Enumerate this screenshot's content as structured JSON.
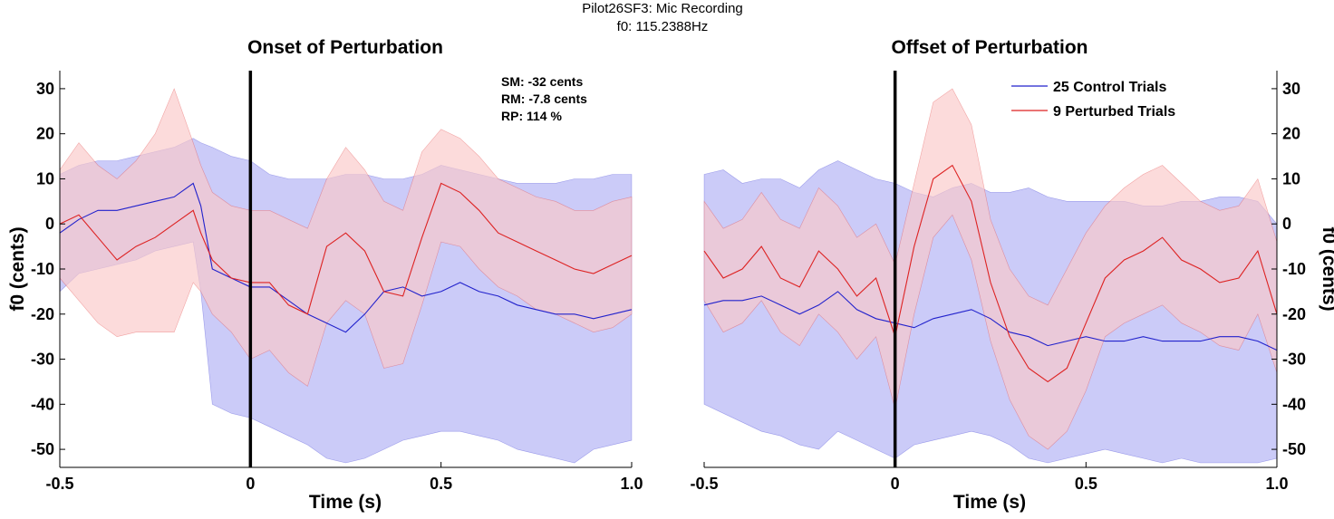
{
  "figure": {
    "suptitle_line1": "Pilot26SF3: Mic Recording",
    "suptitle_line2": "f0: 115.2388Hz"
  },
  "chart_data": [
    {
      "type": "line",
      "title": "Onset of Perturbation",
      "xlabel": "Time (s)",
      "ylabel": "f0 (cents)",
      "xlim": [
        -0.5,
        1.0
      ],
      "ylim": [
        -54,
        34
      ],
      "xticks": [
        "-0.5",
        "0",
        "0.5",
        "1.0"
      ],
      "yticks": [
        "30",
        "20",
        "10",
        "0",
        "-10",
        "-20",
        "-30",
        "-40",
        "-50"
      ],
      "y_axis_side": "left",
      "event_line_x": 0,
      "annotations": [
        "SM: -32 cents",
        "RM: -7.8 cents",
        "RP: 114 %"
      ],
      "series": [
        {
          "name": "25 Control Trials",
          "color": "#2222cc",
          "band_color": "#c8c8f8",
          "x": [
            -0.5,
            -0.45,
            -0.4,
            -0.35,
            -0.3,
            -0.25,
            -0.2,
            -0.15,
            -0.13,
            -0.1,
            -0.05,
            0.0,
            0.05,
            0.1,
            0.15,
            0.2,
            0.25,
            0.3,
            0.35,
            0.4,
            0.45,
            0.5,
            0.55,
            0.6,
            0.65,
            0.7,
            0.75,
            0.8,
            0.85,
            0.9,
            0.95,
            1.0
          ],
          "mean": [
            -2,
            1,
            3,
            3,
            4,
            5,
            6,
            9,
            4,
            -10,
            -12,
            -14,
            -14,
            -17,
            -20,
            -22,
            -24,
            -20,
            -15,
            -14,
            -16,
            -15,
            -13,
            -15,
            -16,
            -18,
            -19,
            -20,
            -20,
            -21,
            -20,
            -19
          ],
          "upper": [
            11,
            13,
            14,
            14,
            15,
            16,
            17,
            19,
            18,
            17,
            15,
            14,
            11,
            10,
            10,
            10,
            11,
            11,
            10,
            10,
            11,
            13,
            12,
            11,
            10,
            9,
            9,
            9,
            10,
            10,
            11,
            11
          ],
          "lower": [
            -15,
            -11,
            -10,
            -9,
            -8,
            -6,
            -5,
            -4,
            -15,
            -40,
            -42,
            -43,
            -45,
            -47,
            -49,
            -52,
            -53,
            -52,
            -50,
            -48,
            -47,
            -46,
            -46,
            -47,
            -48,
            -50,
            -51,
            -52,
            -53,
            -50,
            -49,
            -48
          ]
        },
        {
          "name": "9 Perturbed Trials",
          "color": "#dd2222",
          "band_color": "#fbc8c8",
          "x": [
            -0.5,
            -0.45,
            -0.4,
            -0.35,
            -0.3,
            -0.25,
            -0.2,
            -0.15,
            -0.13,
            -0.1,
            -0.05,
            0.0,
            0.05,
            0.1,
            0.15,
            0.2,
            0.25,
            0.3,
            0.35,
            0.4,
            0.45,
            0.5,
            0.55,
            0.6,
            0.65,
            0.7,
            0.75,
            0.8,
            0.85,
            0.9,
            0.95,
            1.0
          ],
          "mean": [
            0,
            2,
            -3,
            -8,
            -5,
            -3,
            0,
            3,
            -2,
            -8,
            -12,
            -13,
            -13,
            -18,
            -20,
            -5,
            -2,
            -6,
            -15,
            -16,
            -3,
            9,
            7,
            3,
            -2,
            -4,
            -6,
            -8,
            -10,
            -11,
            -9,
            -7
          ],
          "upper": [
            12,
            18,
            13,
            10,
            14,
            20,
            30,
            18,
            13,
            7,
            4,
            3,
            3,
            1,
            -1,
            10,
            17,
            12,
            5,
            3,
            16,
            21,
            19,
            15,
            10,
            8,
            6,
            5,
            3,
            3,
            5,
            6
          ],
          "lower": [
            -12,
            -17,
            -22,
            -25,
            -24,
            -24,
            -24,
            -13,
            -15,
            -20,
            -24,
            -30,
            -28,
            -33,
            -36,
            -22,
            -17,
            -20,
            -32,
            -31,
            -18,
            -4,
            -5,
            -10,
            -14,
            -16,
            -19,
            -20,
            -22,
            -24,
            -23,
            -20
          ]
        }
      ]
    },
    {
      "type": "line",
      "title": "Offset of Perturbation",
      "xlabel": "Time (s)",
      "ylabel": "f0 (cents)",
      "xlim": [
        -0.5,
        1.0
      ],
      "ylim": [
        -54,
        34
      ],
      "xticks": [
        "-0.5",
        "0",
        "0.5",
        "1.0"
      ],
      "yticks": [
        "30",
        "20",
        "10",
        "0",
        "-10",
        "-20",
        "-30",
        "-40",
        "-50"
      ],
      "y_axis_side": "right",
      "event_line_x": 0,
      "series": [
        {
          "name": "25 Control Trials",
          "color": "#2222cc",
          "band_color": "#c8c8f8",
          "x": [
            -0.5,
            -0.45,
            -0.4,
            -0.35,
            -0.3,
            -0.25,
            -0.2,
            -0.15,
            -0.1,
            -0.05,
            0.0,
            0.05,
            0.1,
            0.15,
            0.2,
            0.25,
            0.3,
            0.35,
            0.4,
            0.45,
            0.5,
            0.55,
            0.6,
            0.65,
            0.7,
            0.75,
            0.8,
            0.85,
            0.9,
            0.95,
            1.0
          ],
          "mean": [
            -18,
            -17,
            -17,
            -16,
            -18,
            -20,
            -18,
            -15,
            -19,
            -21,
            -22,
            -23,
            -21,
            -20,
            -19,
            -21,
            -24,
            -25,
            -27,
            -26,
            -25,
            -26,
            -26,
            -25,
            -26,
            -26,
            -26,
            -25,
            -25,
            -26,
            -28
          ],
          "upper": [
            11,
            12,
            9,
            10,
            10,
            8,
            12,
            14,
            12,
            10,
            9,
            7,
            6,
            8,
            9,
            7,
            7,
            8,
            6,
            5,
            5,
            5,
            5,
            4,
            4,
            5,
            5,
            6,
            6,
            5,
            0
          ],
          "lower": [
            -40,
            -42,
            -44,
            -46,
            -47,
            -49,
            -50,
            -46,
            -48,
            -50,
            -52,
            -49,
            -48,
            -47,
            -46,
            -47,
            -49,
            -52,
            -53,
            -52,
            -51,
            -50,
            -51,
            -52,
            -53,
            -52,
            -53,
            -53,
            -53,
            -53,
            -52
          ]
        },
        {
          "name": "9 Perturbed Trials",
          "color": "#dd2222",
          "band_color": "#fbc8c8",
          "x": [
            -0.5,
            -0.45,
            -0.4,
            -0.35,
            -0.3,
            -0.25,
            -0.2,
            -0.15,
            -0.1,
            -0.05,
            0.0,
            0.05,
            0.1,
            0.15,
            0.2,
            0.25,
            0.3,
            0.35,
            0.4,
            0.45,
            0.5,
            0.55,
            0.6,
            0.65,
            0.7,
            0.75,
            0.8,
            0.85,
            0.9,
            0.95,
            1.0
          ],
          "mean": [
            -6,
            -12,
            -10,
            -5,
            -12,
            -14,
            -6,
            -10,
            -16,
            -12,
            -25,
            -5,
            10,
            13,
            5,
            -13,
            -25,
            -32,
            -35,
            -32,
            -22,
            -12,
            -8,
            -6,
            -3,
            -8,
            -10,
            -13,
            -12,
            -6,
            -20
          ],
          "upper": [
            5,
            -1,
            1,
            7,
            1,
            -1,
            8,
            4,
            -3,
            0,
            -9,
            9,
            27,
            30,
            22,
            1,
            -10,
            -16,
            -18,
            -10,
            -2,
            4,
            8,
            11,
            13,
            9,
            5,
            3,
            4,
            10,
            -4
          ],
          "lower": [
            -17,
            -24,
            -22,
            -17,
            -24,
            -27,
            -20,
            -24,
            -30,
            -25,
            -41,
            -20,
            -3,
            2,
            -8,
            -26,
            -39,
            -47,
            -50,
            -46,
            -37,
            -25,
            -22,
            -20,
            -18,
            -22,
            -24,
            -27,
            -28,
            -20,
            -33
          ]
        }
      ]
    }
  ]
}
